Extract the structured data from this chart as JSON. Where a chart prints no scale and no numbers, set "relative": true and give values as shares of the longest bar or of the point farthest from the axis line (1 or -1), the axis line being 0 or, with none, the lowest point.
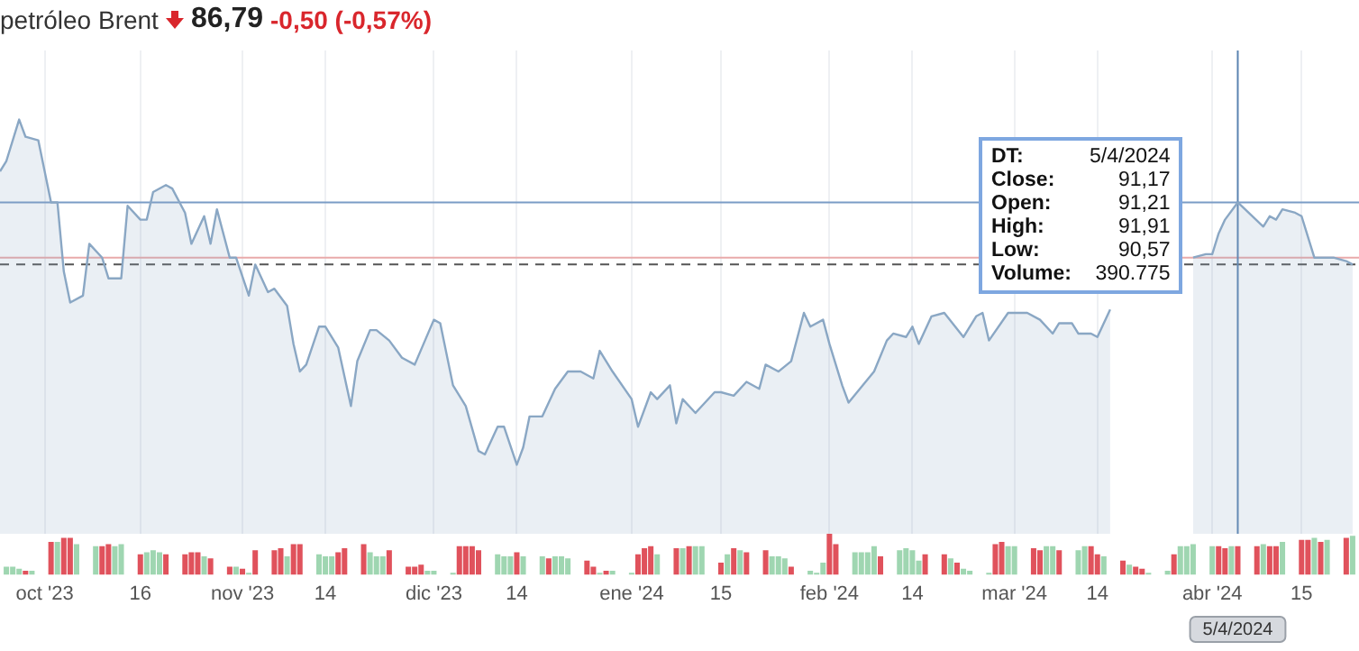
{
  "chart_data": [
    {
      "type": "area",
      "title": "petróleo Brent",
      "subtitle": "86,79",
      "annotations": [
        "-0,50 (-0,57%)",
        "DT:",
        "5/4/2024",
        "Close:",
        "91,17",
        "Open:",
        "91,21",
        "High:",
        "91,91",
        "Low:",
        "90,57",
        "Volume:",
        "390.775"
      ],
      "x": [
        "2023-09-24",
        "2023-09-25",
        "2023-09-27",
        "2023-09-28",
        "2023-09-30",
        "2023-10-02",
        "2023-10-03",
        "2023-10-04",
        "2023-10-05",
        "2023-10-07",
        "2023-10-08",
        "2023-10-10",
        "2023-10-11",
        "2023-10-13",
        "2023-10-14",
        "2023-10-16",
        "2023-10-17",
        "2023-10-18",
        "2023-10-20",
        "2023-10-21",
        "2023-10-23",
        "2023-10-24",
        "2023-10-26",
        "2023-10-27",
        "2023-10-28",
        "2023-10-30",
        "2023-10-31",
        "2023-11-02",
        "2023-11-03",
        "2023-11-05",
        "2023-11-06",
        "2023-11-08",
        "2023-11-09",
        "2023-11-10",
        "2023-11-11",
        "2023-11-13",
        "2023-11-14",
        "2023-11-16",
        "2023-11-18",
        "2023-11-19",
        "2023-11-21",
        "2023-11-22",
        "2023-11-24",
        "2023-11-26",
        "2023-11-28",
        "2023-12-01",
        "2023-12-02",
        "2023-12-04",
        "2023-12-06",
        "2023-12-08",
        "2023-12-09",
        "2023-12-11",
        "2023-12-12",
        "2023-12-14",
        "2023-12-15",
        "2023-12-16",
        "2023-12-18",
        "2023-12-20",
        "2023-12-22",
        "2023-12-24",
        "2023-12-26",
        "2023-12-27",
        "2023-12-29",
        "2024-01-01",
        "2024-01-02",
        "2024-01-04",
        "2024-01-05",
        "2024-01-07",
        "2024-01-08",
        "2024-01-09",
        "2024-01-11",
        "2024-01-14",
        "2024-01-15",
        "2024-01-17",
        "2024-01-19",
        "2024-01-21",
        "2024-01-22",
        "2024-01-24",
        "2024-01-26",
        "2024-01-28",
        "2024-01-29",
        "2024-01-31",
        "2024-02-01",
        "2024-02-03",
        "2024-02-04",
        "2024-02-08",
        "2024-02-10",
        "2024-02-11",
        "2024-02-13",
        "2024-02-14",
        "2024-02-15",
        "2024-02-17",
        "2024-02-19",
        "2024-02-22",
        "2024-02-24",
        "2024-02-25",
        "2024-02-26",
        "2024-02-29",
        "2024-03-02",
        "2024-03-03",
        "2024-03-05",
        "2024-03-07",
        "2024-03-08",
        "2024-03-10",
        "2024-03-11",
        "2024-03-13",
        "2024-03-14",
        "2024-03-16",
        "2024-03-18",
        "2024-03-25",
        "2024-03-29",
        "2024-03-31",
        "2024-04-01",
        "2024-04-02",
        "2024-04-03",
        "2024-04-05",
        "2024-04-09",
        "2024-04-10",
        "2024-04-11",
        "2024-04-12",
        "2024-04-14",
        "2024-04-15",
        "2024-04-17",
        "2024-04-19",
        "2024-04-20",
        "2024-04-22",
        "2024-04-23"
      ],
      "values": [
        0.85,
        0.88,
        1,
        0.95,
        0.94,
        0.76,
        0.76,
        0.56,
        0.47,
        0.49,
        0.64,
        0.6,
        0.54,
        0.54,
        0.75,
        0.71,
        0.71,
        0.79,
        0.81,
        0.8,
        0.73,
        0.64,
        0.72,
        0.64,
        0.74,
        0.6,
        0.6,
        0.49,
        0.58,
        0.5,
        0.51,
        0.46,
        0.35,
        0.27,
        0.29,
        0.4,
        0.4,
        0.34,
        0.17,
        0.3,
        0.39,
        0.39,
        0.36,
        0.31,
        0.29,
        0.42,
        0.41,
        0.23,
        0.17,
        0.04,
        0.03,
        0.11,
        0.11,
        0,
        0.05,
        0.14,
        0.14,
        0.22,
        0.27,
        0.27,
        0.25,
        0.33,
        0.27,
        0.19,
        0.11,
        0.21,
        0.19,
        0.23,
        0.12,
        0.19,
        0.15,
        0.21,
        0.21,
        0.2,
        0.24,
        0.22,
        0.29,
        0.27,
        0.3,
        0.44,
        0.4,
        0.42,
        0.35,
        0.23,
        0.18,
        0.27,
        0.36,
        0.38,
        0.37,
        0.4,
        0.35,
        0.43,
        0.44,
        0.37,
        0.43,
        0.44,
        0.36,
        0.44,
        0.44,
        0.44,
        0.42,
        0.38,
        0.41,
        0.41,
        0.38,
        0.38,
        0.37,
        0.45,
        null,
        null,
        0.6,
        0.61,
        0.61,
        0.67,
        0.71,
        0.76,
        0.69,
        0.72,
        0.71,
        0.74,
        0.73,
        0.72,
        0.6,
        0.6,
        0.6,
        0.59,
        0.58
      ],
      "color": "#8aa7c4",
      "relative": true,
      "xlim": [
        "2023-09-24",
        "2024-04-24"
      ],
      "xticks": [
        {
          "value": "2023-10-01",
          "label": null
        },
        {
          "value": "2023-10-16",
          "label": null
        },
        {
          "value": "2023-11-01",
          "label": null
        },
        {
          "value": "2023-11-14",
          "label": null
        },
        {
          "value": "2023-12-01",
          "label": null
        },
        {
          "value": "2023-12-14",
          "label": null
        },
        {
          "value": "2024-01-01",
          "label": null
        },
        {
          "value": "2024-01-15",
          "label": null
        },
        {
          "value": "2024-02-01",
          "label": null
        },
        {
          "value": "2024-02-14",
          "label": null
        },
        {
          "value": "2024-03-01",
          "label": null
        },
        {
          "value": "2024-03-14",
          "label": null
        },
        {
          "value": "2024-04-01",
          "label": null
        },
        {
          "value": "2024-04-15",
          "label": null
        }
      ],
      "tick_labels": false,
      "grid": "x",
      "ref_lines": [
        {
          "axis": "y",
          "value": 0.76,
          "color": "#7a9cc6"
        },
        {
          "axis": "y",
          "value": 0.6,
          "color": "#e9aaaa"
        },
        {
          "axis": "y",
          "value": 0.58,
          "color": "#555555",
          "line_style": "dashed"
        },
        {
          "axis": "x",
          "value": "2024-04-05",
          "color": "#5b84b1"
        }
      ]
    },
    {
      "type": "bar",
      "relative": true,
      "x": [
        "2023-09-25",
        "2023-09-26",
        "2023-09-27",
        "2023-09-28",
        "2023-09-29",
        "2023-10-02",
        "2023-10-03",
        "2023-10-04",
        "2023-10-05",
        "2023-10-06",
        "2023-10-09",
        "2023-10-10",
        "2023-10-11",
        "2023-10-12",
        "2023-10-13",
        "2023-10-16",
        "2023-10-17",
        "2023-10-18",
        "2023-10-19",
        "2023-10-20",
        "2023-10-23",
        "2023-10-24",
        "2023-10-25",
        "2023-10-26",
        "2023-10-27",
        "2023-10-30",
        "2023-10-31",
        "2023-11-01",
        "2023-11-02",
        "2023-11-03",
        "2023-11-06",
        "2023-11-07",
        "2023-11-08",
        "2023-11-09",
        "2023-11-10",
        "2023-11-13",
        "2023-11-14",
        "2023-11-15",
        "2023-11-16",
        "2023-11-17",
        "2023-11-20",
        "2023-11-21",
        "2023-11-22",
        "2023-11-23",
        "2023-11-24",
        "2023-11-27",
        "2023-11-28",
        "2023-11-29",
        "2023-11-30",
        "2023-12-01",
        "2023-12-04",
        "2023-12-05",
        "2023-12-06",
        "2023-12-07",
        "2023-12-08",
        "2023-12-11",
        "2023-12-12",
        "2023-12-13",
        "2023-12-14",
        "2023-12-15",
        "2023-12-18",
        "2023-12-19",
        "2023-12-20",
        "2023-12-21",
        "2023-12-22",
        "2023-12-25",
        "2023-12-26",
        "2023-12-27",
        "2023-12-28",
        "2023-12-29",
        "2024-01-01",
        "2024-01-02",
        "2024-01-03",
        "2024-01-04",
        "2024-01-05",
        "2024-01-08",
        "2024-01-09",
        "2024-01-10",
        "2024-01-11",
        "2024-01-12",
        "2024-01-15",
        "2024-01-16",
        "2024-01-17",
        "2024-01-18",
        "2024-01-19",
        "2024-01-22",
        "2024-01-23",
        "2024-01-24",
        "2024-01-25",
        "2024-01-26",
        "2024-01-29",
        "2024-01-30",
        "2024-01-31",
        "2024-02-01",
        "2024-02-02",
        "2024-02-05",
        "2024-02-06",
        "2024-02-07",
        "2024-02-08",
        "2024-02-09",
        "2024-02-12",
        "2024-02-13",
        "2024-02-14",
        "2024-02-15",
        "2024-02-16",
        "2024-02-19",
        "2024-02-20",
        "2024-02-21",
        "2024-02-22",
        "2024-02-23",
        "2024-02-26",
        "2024-02-27",
        "2024-02-28",
        "2024-02-29",
        "2024-03-01",
        "2024-03-04",
        "2024-03-05",
        "2024-03-06",
        "2024-03-07",
        "2024-03-08",
        "2024-03-11",
        "2024-03-12",
        "2024-03-13",
        "2024-03-14",
        "2024-03-15",
        "2024-03-18",
        "2024-03-19",
        "2024-03-20",
        "2024-03-21",
        "2024-03-22",
        "2024-03-25",
        "2024-03-26",
        "2024-03-27",
        "2024-03-28",
        "2024-03-29",
        "2024-04-01",
        "2024-04-02",
        "2024-04-03",
        "2024-04-04",
        "2024-04-05",
        "2024-04-08",
        "2024-04-09",
        "2024-04-10",
        "2024-04-11",
        "2024-04-12",
        "2024-04-15",
        "2024-04-16",
        "2024-04-17",
        "2024-04-18",
        "2024-04-19",
        "2024-04-22",
        "2024-04-23"
      ],
      "values": [
        0.2,
        0.2,
        0.15,
        0.1,
        0.1,
        0.8,
        0.8,
        0.9,
        0.9,
        0.75,
        0.7,
        0.7,
        0.75,
        0.7,
        0.75,
        0.5,
        0.55,
        0.6,
        0.55,
        0.5,
        0.5,
        0.55,
        0.55,
        0.45,
        0.4,
        0.2,
        0.2,
        0.15,
        0.05,
        0.6,
        0.6,
        0.65,
        0.45,
        0.75,
        0.75,
        0.5,
        0.45,
        0.45,
        0.55,
        0.65,
        0.75,
        0.55,
        0.45,
        0.45,
        0.6,
        0.2,
        0.2,
        0.25,
        0.1,
        0.1,
        0.05,
        0.7,
        0.7,
        0.7,
        0.6,
        0.5,
        0.45,
        0.45,
        0.55,
        0.45,
        0.45,
        0.4,
        0.45,
        0.45,
        0.4,
        0.35,
        0.2,
        0.05,
        0.1,
        0.1,
        0.05,
        0.5,
        0.65,
        0.7,
        0.5,
        0.65,
        0.65,
        0.7,
        0.7,
        0.7,
        0.3,
        0.5,
        0.65,
        0.6,
        0.55,
        0.6,
        0.45,
        0.45,
        0.4,
        0.2,
        0.1,
        0.05,
        0.3,
        1,
        0.75,
        0.55,
        0.55,
        0.55,
        0.7,
        0.45,
        0.6,
        0.65,
        0.6,
        0.35,
        0.5,
        0.5,
        0.4,
        0.3,
        0.15,
        0.1,
        0.05,
        0.75,
        0.8,
        0.7,
        0.7,
        0.65,
        0.6,
        0.7,
        0.7,
        0.6,
        0.6,
        0.7,
        0.7,
        0.5,
        0.45,
        0.35,
        0.25,
        0.2,
        0.15,
        0.05,
        0.1,
        0.5,
        0.7,
        0.7,
        0.75,
        0.7,
        0.7,
        0.65,
        0.7,
        0.7,
        0.7,
        0.75,
        0.7,
        0.7,
        0.8,
        0.85,
        0.85,
        0.9,
        0.8,
        0.85,
        0.9,
        0.95
      ],
      "colors": [
        "#9fd6b1",
        "#9fd6b1",
        "#9fd6b1",
        "#e0525c",
        "#9fd6b1",
        "#e0525c",
        "#9fd6b1",
        "#e0525c",
        "#e0525c",
        "#9fd6b1",
        "#9fd6b1",
        "#e0525c",
        "#e0525c",
        "#9fd6b1",
        "#9fd6b1",
        "#e0525c",
        "#9fd6b1",
        "#9fd6b1",
        "#9fd6b1",
        "#e0525c",
        "#e0525c",
        "#e0525c",
        "#e0525c",
        "#9fd6b1",
        "#e0525c",
        "#e0525c",
        "#9fd6b1",
        "#e0525c",
        "#9fd6b1",
        "#e0525c",
        "#e0525c",
        "#e0525c",
        "#9fd6b1",
        "#e0525c",
        "#e0525c",
        "#9fd6b1",
        "#9fd6b1",
        "#9fd6b1",
        "#e0525c",
        "#e0525c",
        "#e0525c",
        "#9fd6b1",
        "#9fd6b1",
        "#9fd6b1",
        "#e0525c",
        "#e0525c",
        "#e0525c",
        "#e0525c",
        "#9fd6b1",
        "#9fd6b1",
        "#9fd6b1",
        "#e0525c",
        "#e0525c",
        "#e0525c",
        "#e0525c",
        "#9fd6b1",
        "#9fd6b1",
        "#9fd6b1",
        "#e0525c",
        "#9fd6b1",
        "#9fd6b1",
        "#e0525c",
        "#9fd6b1",
        "#9fd6b1",
        "#9fd6b1",
        "#e0525c",
        "#e0525c",
        "#9fd6b1",
        "#e0525c",
        "#9fd6b1",
        "#9fd6b1",
        "#e0525c",
        "#e0525c",
        "#e0525c",
        "#9fd6b1",
        "#e0525c",
        "#9fd6b1",
        "#e0525c",
        "#9fd6b1",
        "#9fd6b1",
        "#e0525c",
        "#9fd6b1",
        "#e0525c",
        "#9fd6b1",
        "#e0525c",
        "#e0525c",
        "#9fd6b1",
        "#9fd6b1",
        "#9fd6b1",
        "#e0525c",
        "#9fd6b1",
        "#9fd6b1",
        "#9fd6b1",
        "#e0525c",
        "#e0525c",
        "#9fd6b1",
        "#9fd6b1",
        "#9fd6b1",
        "#9fd6b1",
        "#e0525c",
        "#9fd6b1",
        "#9fd6b1",
        "#9fd6b1",
        "#9fd6b1",
        "#e0525c",
        "#e0525c",
        "#9fd6b1",
        "#e0525c",
        "#9fd6b1",
        "#9fd6b1",
        "#9fd6b1",
        "#e0525c",
        "#e0525c",
        "#9fd6b1",
        "#9fd6b1",
        "#e0525c",
        "#e0525c",
        "#9fd6b1",
        "#9fd6b1",
        "#e0525c",
        "#9fd6b1",
        "#9fd6b1",
        "#e0525c",
        "#e0525c",
        "#9fd6b1",
        "#e0525c",
        "#9fd6b1",
        "#e0525c",
        "#e0525c",
        "#9fd6b1",
        "#9fd6b1",
        "#e0525c",
        "#9fd6b1",
        "#9fd6b1",
        "#9fd6b1",
        "#9fd6b1",
        "#e0525c",
        "#e0525c",
        "#9fd6b1",
        "#e0525c",
        "#e0525c",
        "#9fd6b1",
        "#e0525c",
        "#e0525c",
        "#9fd6b1",
        "#e0525c",
        "#e0525c",
        "#9fd6b1",
        "#e0525c",
        "#9fd6b1",
        "#e0525c",
        "#9fd6b1"
      ],
      "xlim": [
        "2023-09-24",
        "2024-04-24"
      ],
      "xticks": [
        {
          "value": "2023-10-01",
          "label": "oct '23"
        },
        {
          "value": "2023-10-16",
          "label": "16"
        },
        {
          "value": "2023-11-01",
          "label": "nov '23"
        },
        {
          "value": "2023-11-14",
          "label": "14"
        },
        {
          "value": "2023-12-01",
          "label": "dic '23"
        },
        {
          "value": "2023-12-14",
          "label": "14"
        },
        {
          "value": "2024-01-01",
          "label": "ene '24"
        },
        {
          "value": "2024-01-15",
          "label": "15"
        },
        {
          "value": "2024-02-01",
          "label": "feb '24"
        },
        {
          "value": "2024-02-14",
          "label": "14"
        },
        {
          "value": "2024-03-01",
          "label": "mar '24"
        },
        {
          "value": "2024-03-14",
          "label": "14"
        },
        {
          "value": "2024-04-01",
          "label": "abr '24"
        },
        {
          "value": "2024-04-15",
          "label": "15"
        }
      ],
      "tick_labels": "x",
      "annotations": [
        "5/4/2024"
      ]
    }
  ]
}
